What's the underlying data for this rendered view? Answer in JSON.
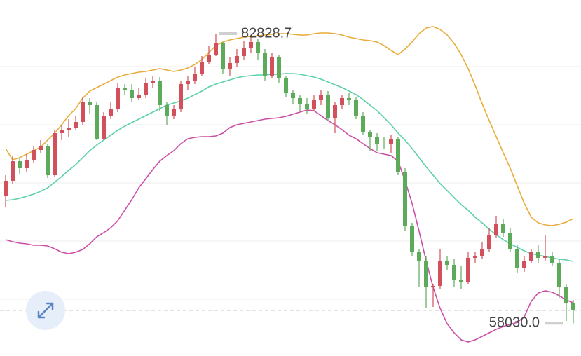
{
  "chart_data": {
    "type": "candlestick",
    "up_color": "#d24f5c",
    "down_color": "#5daa5a",
    "high_label": 82828.7,
    "low_label": {
      "value": 58030.0,
      "label": "58030.0"
    },
    "open": [
      68909,
      70229,
      71909,
      71309,
      72029,
      72869,
      73229,
      70709,
      74309,
      74549,
      74789,
      75269,
      77009,
      76709,
      73829,
      75809,
      76409,
      78209,
      78029,
      77309,
      77609,
      78629,
      78809,
      76709,
      75809,
      76409,
      78509,
      78809,
      79409,
      80429,
      81029,
      81989,
      79829,
      80309,
      80909,
      81629,
      82109,
      81209,
      79229,
      80789,
      78989,
      77789,
      77309,
      76829,
      76409,
      77129,
      77609,
      75629,
      76709,
      77309,
      77189,
      75809,
      74429,
      73949,
      73409,
      73349,
      73829,
      71009,
      66389,
      64109,
      63389,
      61109,
      61229,
      63389,
      63029,
      61709,
      61589,
      63629,
      63749,
      64409,
      65609,
      66509,
      65789,
      64409,
      62789,
      63389,
      64109,
      63629,
      63749,
      63209,
      61109,
      59789
    ],
    "high": [
      70709,
      72389,
      72209,
      72509,
      73229,
      73709,
      73409,
      74609,
      75029,
      75509,
      75809,
      77429,
      77309,
      77009,
      76109,
      77009,
      78629,
      78509,
      78509,
      78209,
      78989,
      79229,
      79109,
      77009,
      76709,
      78809,
      79229,
      80009,
      80909,
      81809,
      82828.7,
      82109,
      80789,
      81509,
      82229,
      82589,
      82409,
      81509,
      81209,
      81029,
      79229,
      78029,
      77609,
      77309,
      77609,
      78029,
      77909,
      77009,
      77609,
      77789,
      77429,
      76109,
      74609,
      74309,
      74009,
      74189,
      74009,
      71309,
      66629,
      64409,
      63809,
      61409,
      64409,
      63809,
      63509,
      62909,
      64109,
      64109,
      65009,
      66209,
      67229,
      66989,
      66209,
      64709,
      63809,
      64409,
      64709,
      65609,
      64109,
      63509,
      61409,
      60029
    ],
    "low": [
      68009,
      69989,
      70829,
      71009,
      71789,
      72629,
      70469,
      70589,
      73709,
      73949,
      74609,
      75029,
      75989,
      73709,
      73709,
      75509,
      76109,
      77609,
      77009,
      77189,
      77309,
      78209,
      76229,
      75029,
      75509,
      76109,
      78029,
      78509,
      79229,
      80189,
      80909,
      79409,
      79229,
      80009,
      80609,
      81209,
      80609,
      78809,
      78989,
      78629,
      77429,
      76829,
      76229,
      75989,
      76229,
      76709,
      75389,
      74309,
      76409,
      76709,
      75509,
      74189,
      72809,
      72809,
      72989,
      72629,
      70709,
      65909,
      63809,
      61109,
      59309,
      59429,
      60989,
      62609,
      61109,
      60989,
      61409,
      63209,
      63509,
      64109,
      65309,
      65429,
      64109,
      62309,
      62429,
      63209,
      63209,
      63389,
      62909,
      60209,
      58229,
      58030.0
    ],
    "close": [
      70229,
      71909,
      71309,
      72029,
      72869,
      73229,
      70709,
      74309,
      74549,
      74789,
      75269,
      77009,
      76709,
      73829,
      75809,
      76409,
      78209,
      78029,
      77309,
      77609,
      78629,
      78809,
      76709,
      75809,
      76409,
      78509,
      78809,
      79409,
      80429,
      81029,
      81989,
      79829,
      80309,
      80909,
      81629,
      82109,
      81209,
      79229,
      80789,
      78989,
      77789,
      77309,
      76829,
      76409,
      77129,
      77609,
      75629,
      76709,
      77309,
      77189,
      75809,
      74429,
      73949,
      73409,
      73349,
      73829,
      71009,
      66389,
      64109,
      63389,
      61109,
      61229,
      63389,
      63029,
      61709,
      61589,
      63629,
      63749,
      64409,
      65609,
      66509,
      65789,
      64409,
      62789,
      63389,
      64109,
      63629,
      63749,
      63209,
      61109,
      59789,
      59129
    ],
    "overlays": [
      {
        "color": "#e8ac3a",
        "values": [
          72989,
          72029,
          72209,
          72509,
          72809,
          73109,
          73709,
          74309,
          75029,
          75809,
          76409,
          77309,
          77909,
          78209,
          78509,
          78809,
          79109,
          79289,
          79409,
          79529,
          79589,
          79709,
          79829,
          79709,
          79589,
          79709,
          79889,
          80189,
          80609,
          81209,
          81809,
          82109,
          82289,
          82409,
          82529,
          82589,
          82649,
          82709,
          82769,
          82829,
          82829,
          82769,
          82709,
          82709,
          82829,
          82889,
          82889,
          82829,
          82709,
          82529,
          82409,
          82289,
          82229,
          82109,
          81809,
          81389,
          81029,
          81509,
          82109,
          82829,
          83309,
          83429,
          83189,
          82709,
          81989,
          81029,
          79829,
          78389,
          76829,
          75389,
          74009,
          72629,
          71309,
          69809,
          68309,
          67109,
          66629,
          66449,
          66389,
          66509,
          66689,
          66989
        ]
      },
      {
        "color": "#5cd0aa",
        "values": [
          68549,
          68609,
          68729,
          68909,
          69089,
          69329,
          69629,
          70109,
          70589,
          71129,
          71609,
          72209,
          72809,
          73289,
          73709,
          74129,
          74549,
          74909,
          75209,
          75509,
          75809,
          76109,
          76409,
          76709,
          76889,
          77069,
          77309,
          77609,
          77909,
          78269,
          78509,
          78689,
          78869,
          79049,
          79169,
          79229,
          79289,
          79289,
          79349,
          79349,
          79409,
          79409,
          79349,
          79229,
          79109,
          78929,
          78689,
          78449,
          78209,
          77909,
          77609,
          77189,
          76709,
          76229,
          75629,
          75029,
          74309,
          73709,
          72989,
          72209,
          71429,
          70709,
          69989,
          69389,
          68789,
          68189,
          67709,
          67109,
          66629,
          66089,
          65609,
          65189,
          64829,
          64529,
          64229,
          63989,
          63869,
          63749,
          63629,
          63509,
          63449,
          63329
        ]
      },
      {
        "color": "#cc4fa6",
        "values": [
          65189,
          65009,
          64889,
          64829,
          64709,
          64709,
          64649,
          64409,
          64109,
          63989,
          64109,
          64349,
          64829,
          65429,
          65789,
          66209,
          66809,
          67709,
          68609,
          69629,
          70409,
          71189,
          71909,
          72389,
          72809,
          73409,
          73829,
          73949,
          74009,
          74009,
          74069,
          74309,
          74789,
          75029,
          75149,
          75269,
          75389,
          75509,
          75569,
          75629,
          75749,
          75929,
          76109,
          76289,
          76229,
          75809,
          75389,
          75029,
          74609,
          74129,
          73829,
          73409,
          72989,
          72629,
          72509,
          72389,
          71909,
          70229,
          68309,
          65909,
          63389,
          61109,
          59309,
          57989,
          57209,
          56609,
          56429,
          56609,
          56909,
          57209,
          57509,
          57749,
          57929,
          58109,
          58589,
          59909,
          60629,
          60809,
          60689,
          60389,
          60029,
          59789
        ]
      }
    ]
  }
}
